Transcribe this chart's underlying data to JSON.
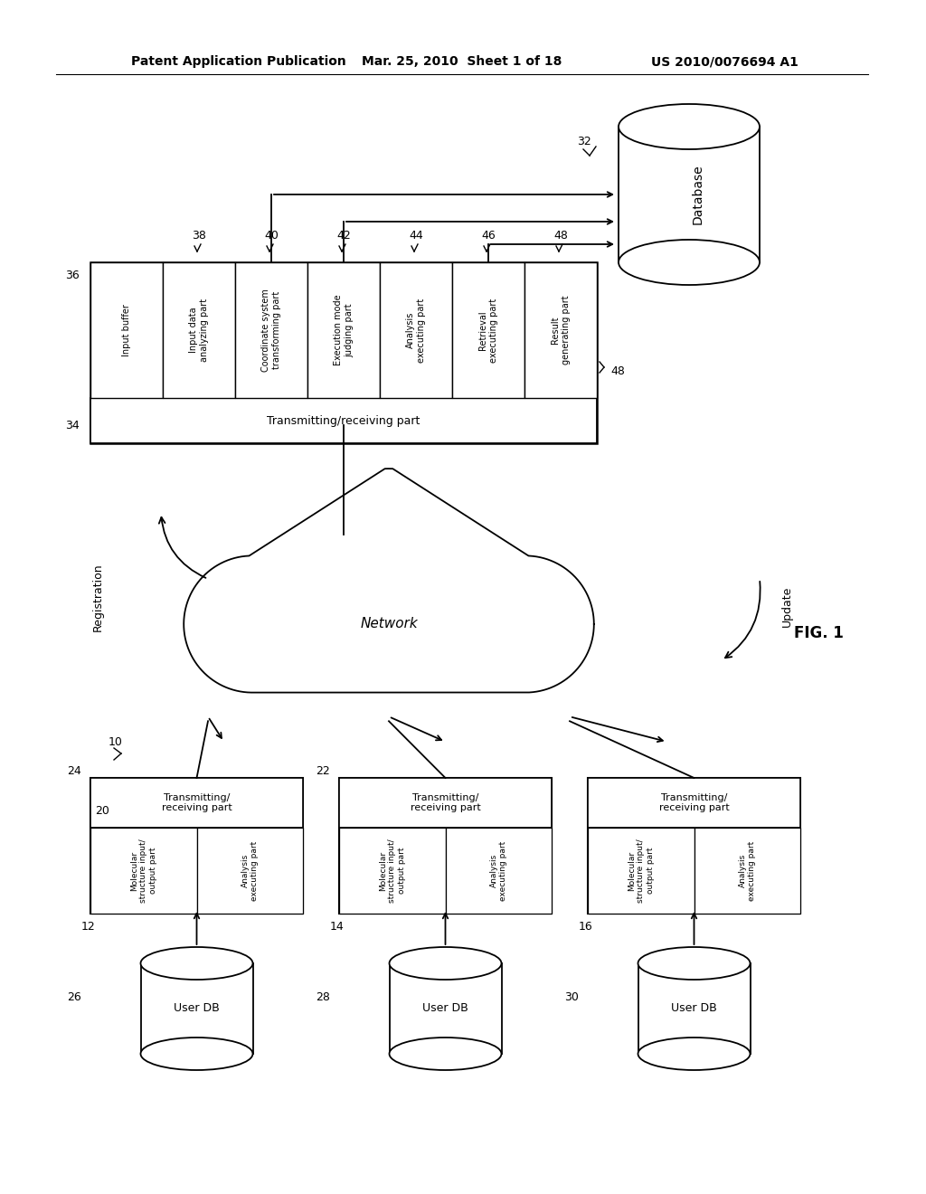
{
  "bg_color": "#ffffff",
  "header_text": "Patent Application Publication",
  "header_date": "Mar. 25, 2010  Sheet 1 of 18",
  "header_patent": "US 2010/0076694 A1",
  "fig_label": "FIG. 1",
  "server_modules": [
    {
      "label": "Input buffer",
      "num": ""
    },
    {
      "label": "Input data\nanalyzing part",
      "num": "38"
    },
    {
      "label": "Coordinate system\ntransforming part",
      "num": "40"
    },
    {
      "label": "Execution mode\njudging part",
      "num": "42"
    },
    {
      "label": "Analysis\nexecuting part",
      "num": "44"
    },
    {
      "label": "Retrieval\nexecuting part",
      "num": "46"
    },
    {
      "label": "Result\ngenerating part",
      "num": "48"
    }
  ],
  "database_label": "Database",
  "database_num": "32",
  "network_label": "Network",
  "registration_label": "Registration",
  "update_label": "Update",
  "client_boxes": [
    {
      "num": "12",
      "tx_rx_num": "24",
      "modules": [
        {
          "label": "Molecular\nstructure input/\noutput part",
          "num": "20"
        },
        {
          "label": "Analysis\nexecuting part",
          "num": ""
        }
      ],
      "db_label": "User DB",
      "db_num": "26"
    },
    {
      "num": "14",
      "tx_rx_num": "22",
      "modules": [
        {
          "label": "Molecular\nstructure input/\noutput part",
          "num": ""
        },
        {
          "label": "Analysis\nexecuting part",
          "num": ""
        }
      ],
      "db_label": "User DB",
      "db_num": "28"
    },
    {
      "num": "16",
      "tx_rx_num": "",
      "modules": [
        {
          "label": "Molecular\nstructure input/\noutput part",
          "num": ""
        },
        {
          "label": "Analysis\nexecuting part",
          "num": ""
        }
      ],
      "db_label": "User DB",
      "db_num": "30"
    }
  ]
}
